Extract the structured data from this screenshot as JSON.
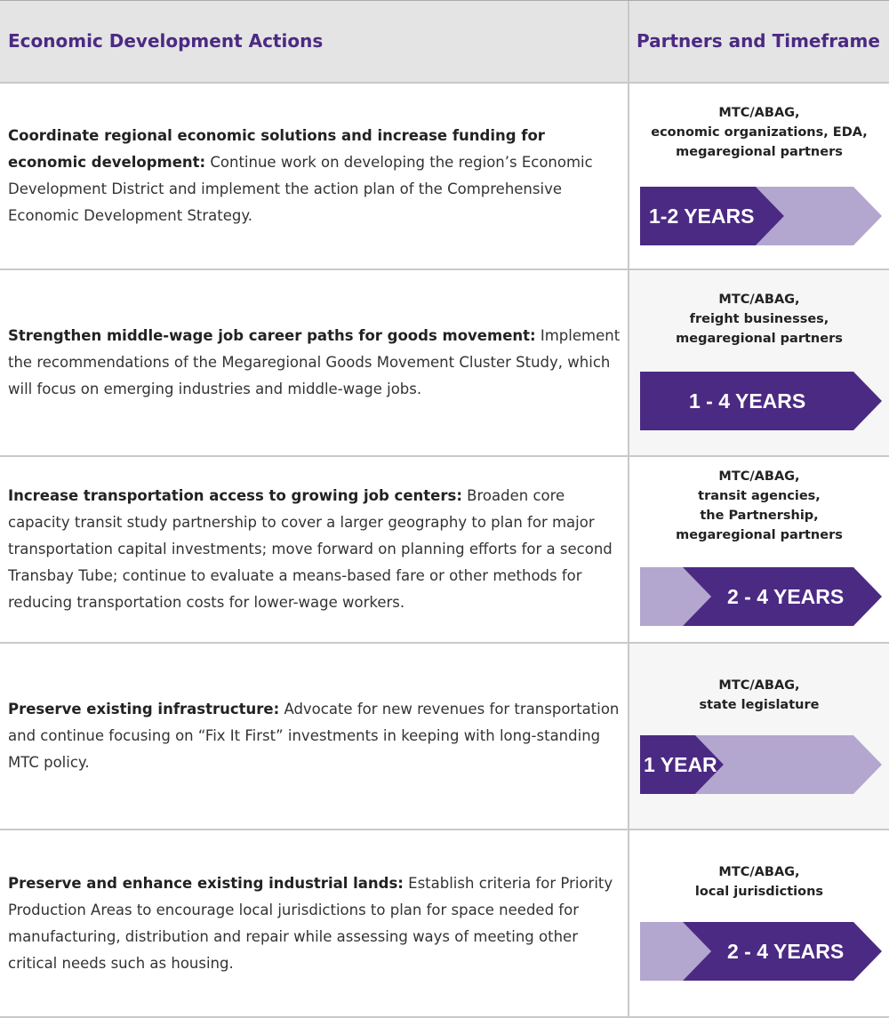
{
  "header": {
    "left_title": "Economic Development Actions",
    "right_title": "Partners and Timeframe"
  },
  "colors": {
    "accent_purple": "#4b2a83",
    "light_purple": "#b3a6cf",
    "header_bg": "#e4e4e4",
    "rule": "#c9c9c9"
  },
  "rows": [
    {
      "action_title": "Coordinate regional economic solutions and increase funding for economic development:",
      "action_text": " Continue work on developing the region’s Economic Development District and implement the action plan of the Comprehensive Economic Development Strategy.",
      "partners": [
        "MTC/ABAG,",
        "economic organizations, EDA,",
        "megaregional partners"
      ],
      "timeframe": "1-2 YEARS",
      "timeframe_highlight": "start"
    },
    {
      "action_title": "Strengthen middle-wage job career paths for goods movement:",
      "action_text": " Implement the recommendations of the Megaregional Goods Movement Cluster Study, which will focus on emerging industries and middle-wage jobs.",
      "partners": [
        "MTC/ABAG,",
        "freight businesses,",
        "megaregional partners"
      ],
      "timeframe": "1 - 4 YEARS",
      "timeframe_highlight": "full"
    },
    {
      "action_title": "Increase transportation access to growing job centers:",
      "action_text": " Broaden core capacity transit study partnership to cover a larger geography to plan for major transportation capital investments; move forward on planning efforts for a second Transbay Tube; continue to evaluate a means-based fare or other methods for reducing transportation costs for lower-wage workers.",
      "partners": [
        "MTC/ABAG,",
        "transit agencies,",
        "the Partnership,",
        "megaregional partners"
      ],
      "timeframe": "2 - 4 YEARS",
      "timeframe_highlight": "end"
    },
    {
      "action_title": "Preserve existing infrastructure:",
      "action_text": " Advocate for new revenues for transportation and continue focusing on “Fix It First” investments in keeping with long-standing MTC policy.",
      "partners": [
        "MTC/ABAG,",
        "state legislature"
      ],
      "timeframe": "1 YEAR",
      "timeframe_highlight": "start-short"
    },
    {
      "action_title": "Preserve and enhance existing industrial lands:",
      "action_text": " Establish criteria for Priority Production Areas to encourage local jurisdictions to plan for space needed for manufacturing, distribution and repair while assessing ways of meeting other critical needs such as housing.",
      "partners": [
        "MTC/ABAG,",
        "local jurisdictions"
      ],
      "timeframe": "2 - 4 YEARS",
      "timeframe_highlight": "end"
    }
  ]
}
